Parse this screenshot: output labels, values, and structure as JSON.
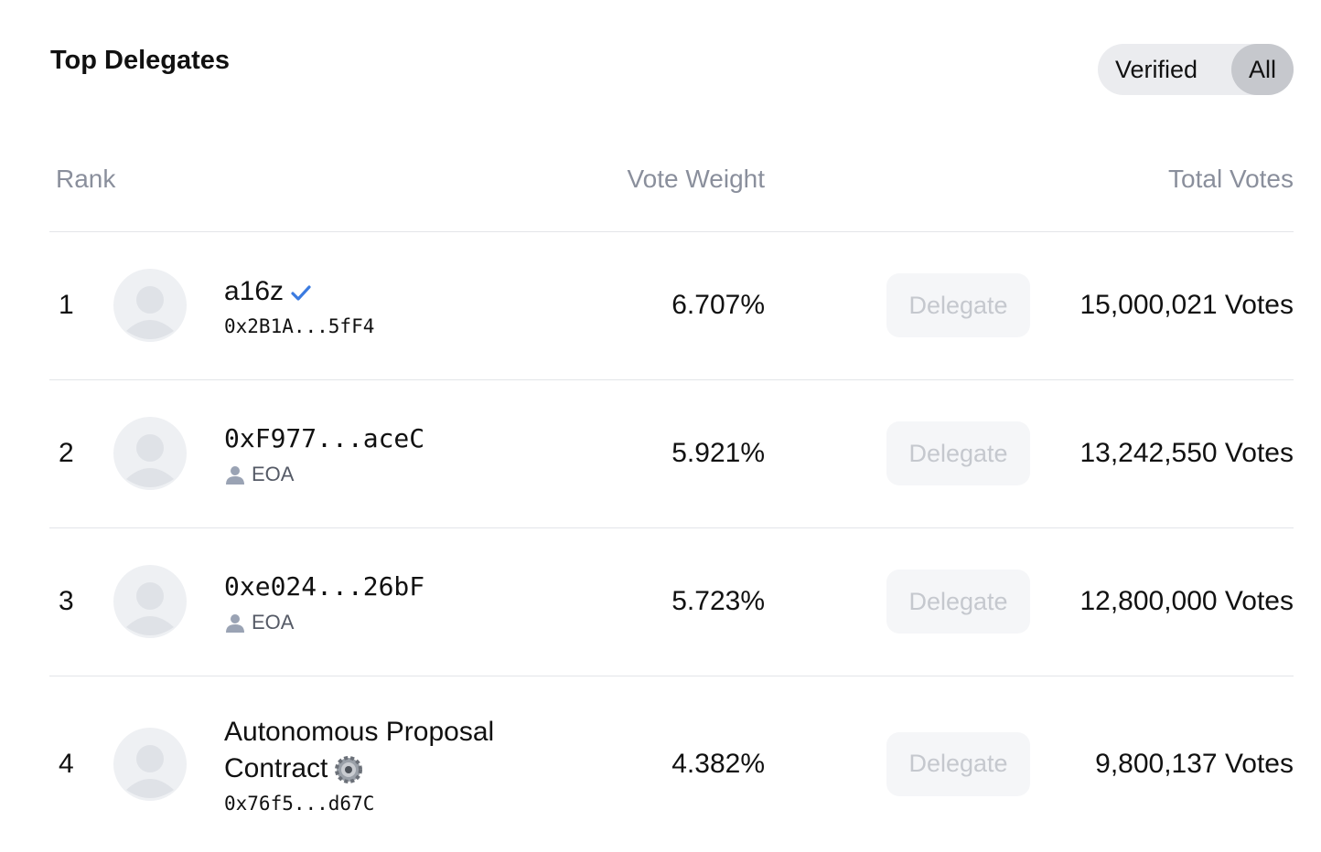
{
  "header": {
    "title": "Top Delegates",
    "filters": [
      {
        "label": "Verified",
        "active": false
      },
      {
        "label": "All",
        "active": true
      }
    ]
  },
  "table": {
    "columns": [
      "Rank",
      "Vote Weight",
      "Total Votes"
    ],
    "action_label": "Delegate",
    "rows": [
      {
        "rank": "1",
        "name": "a16z",
        "name_icon": "check",
        "detail": "0x2B1A...5fF4",
        "detail_icon": null,
        "vote_weight": "6.707%",
        "total_votes": "15,000,021 Votes"
      },
      {
        "rank": "2",
        "name": "0xF977...aceC",
        "name_icon": null,
        "detail": "EOA",
        "detail_icon": "person",
        "vote_weight": "5.921%",
        "total_votes": "13,242,550 Votes"
      },
      {
        "rank": "3",
        "name": "0xe024...26bF",
        "name_icon": null,
        "detail": "EOA",
        "detail_icon": "person",
        "vote_weight": "5.723%",
        "total_votes": "12,800,000 Votes"
      },
      {
        "rank": "4",
        "name": "Autonomous Proposal Contract",
        "name_icon": "gear",
        "detail": "0x76f5...d67C",
        "detail_icon": null,
        "vote_weight": "4.382%",
        "total_votes": "9,800,137 Votes"
      }
    ]
  }
}
